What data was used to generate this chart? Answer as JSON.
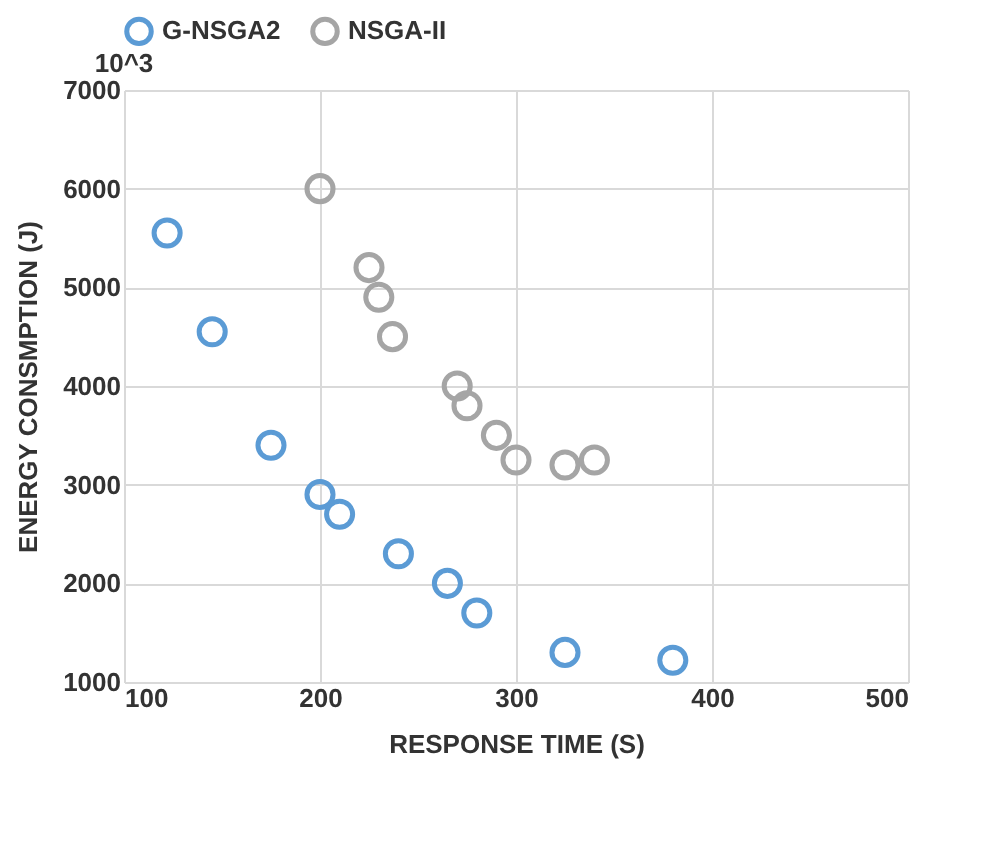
{
  "chart_data": {
    "type": "scatter",
    "xlabel": "RESPONSE TIME (S)",
    "ylabel": "ENERGY CONSMPTION (J)",
    "annotations": [
      "10^3"
    ],
    "series": [
      {
        "name": "G-NSGA2",
        "color": "#5b9bd5",
        "x": [
          122,
          145,
          175,
          200,
          210,
          240,
          265,
          280,
          325,
          380
        ],
        "values": [
          5550,
          4550,
          3400,
          2900,
          2700,
          2300,
          2000,
          1700,
          1300,
          1220
        ]
      },
      {
        "name": "NSGA-II",
        "color": "#a5a5a5",
        "x": [
          200,
          225,
          230,
          237,
          270,
          275,
          290,
          300,
          325,
          340
        ],
        "values": [
          6000,
          5200,
          4900,
          4500,
          4000,
          3800,
          3500,
          3250,
          3200,
          3250
        ]
      }
    ],
    "xlim": [
      100,
      500
    ],
    "xticks": [
      100,
      200,
      300,
      400,
      500
    ],
    "ylim": [
      1000,
      7000
    ],
    "yticks": [
      1000,
      2000,
      3000,
      4000,
      5000,
      6000,
      7000
    ],
    "grid": true,
    "legend": "top",
    "marker": "circle"
  }
}
